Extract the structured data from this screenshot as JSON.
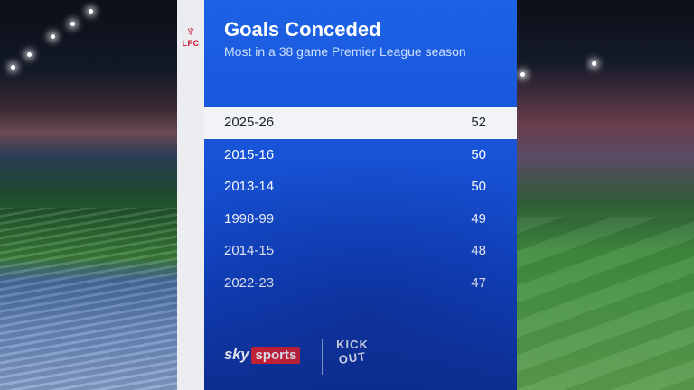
{
  "graphic": {
    "crest_text": "LFC",
    "title": "Goals Conceded",
    "subtitle": "Most in a 38 game Premier League season"
  },
  "table": {
    "rows": [
      {
        "season": "2025-26",
        "goals": "52",
        "highlighted": true
      },
      {
        "season": "2015-16",
        "goals": "50",
        "highlighted": false
      },
      {
        "season": "2013-14",
        "goals": "50",
        "highlighted": false
      },
      {
        "season": "1998-99",
        "goals": "49",
        "highlighted": false
      },
      {
        "season": "2014-15",
        "goals": "48",
        "highlighted": false
      },
      {
        "season": "2022-23",
        "goals": "47",
        "highlighted": false
      }
    ]
  },
  "footer": {
    "sky_word": "sky",
    "sports_word": "sports",
    "kickout_line1": "KICK",
    "kickout_line2": "OUT"
  },
  "colors": {
    "panel_blue": "#1753d6",
    "highlight_row": "#f2f3f6",
    "sky_sports_red": "#e0202c",
    "lfc_red": "#c8102e"
  },
  "icons": [
    "lfc-crest-icon",
    "sky-sports-logo",
    "kick-out-logo"
  ]
}
